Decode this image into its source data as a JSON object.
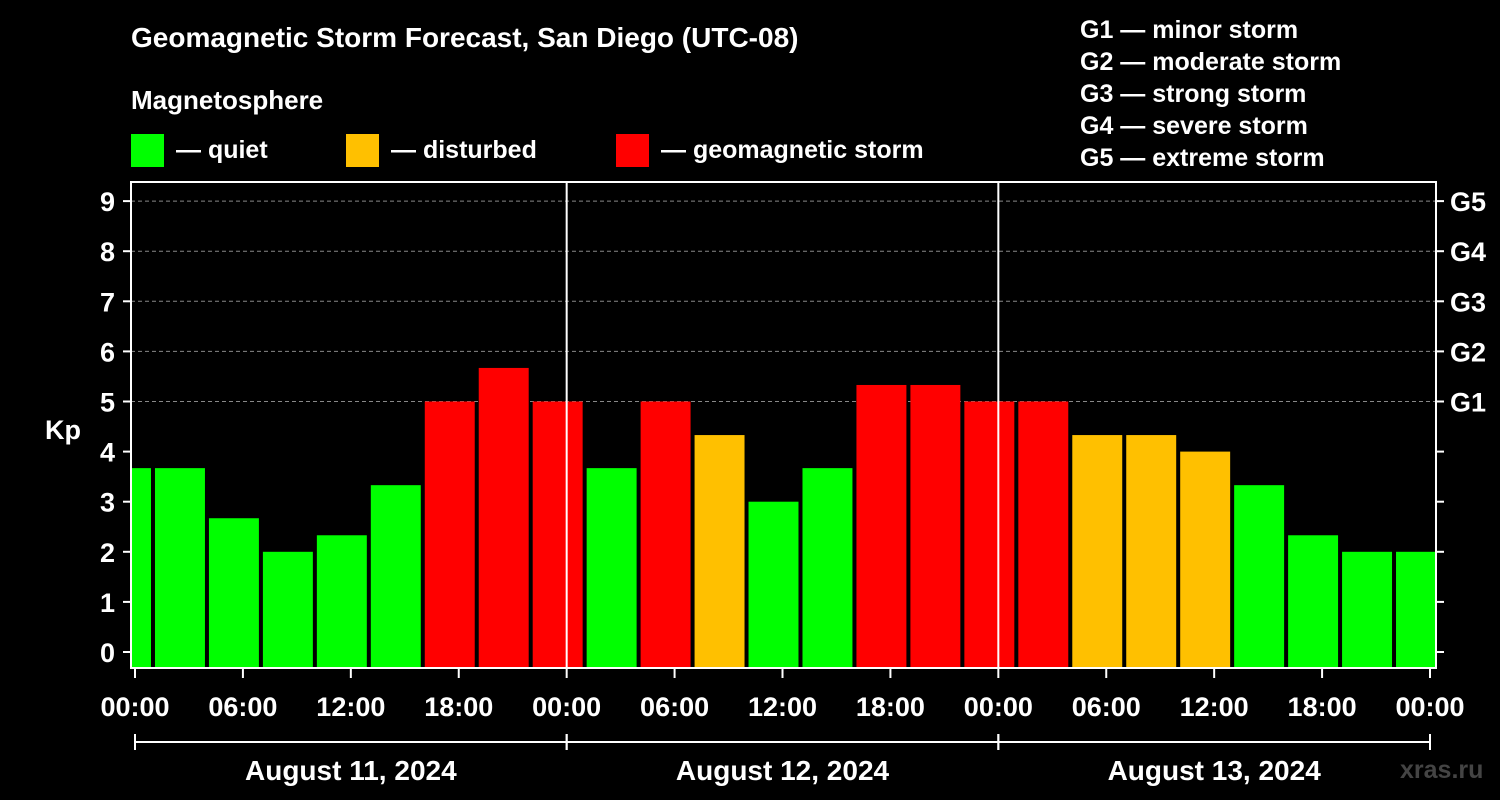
{
  "title": "Geomagnetic Storm Forecast, San Diego (UTC-08)",
  "legend": {
    "heading": "Magnetosphere",
    "items": [
      {
        "label": "— quiet",
        "color": "#00ff00"
      },
      {
        "label": "— disturbed",
        "color": "#ffc000"
      },
      {
        "label": "— geomagnetic storm",
        "color": "#ff0000"
      }
    ]
  },
  "g_scale": [
    "G1 — minor storm",
    "G2 — moderate storm",
    "G3 — strong storm",
    "G4 — severe storm",
    "G5 — extreme storm"
  ],
  "watermark": "xras.ru",
  "chart_data": {
    "type": "bar",
    "title": "Geomagnetic Storm Forecast, San Diego (UTC-08)",
    "ylabel": "Kp",
    "ylim": [
      0,
      9
    ],
    "yticks": [
      0,
      1,
      2,
      3,
      4,
      5,
      6,
      7,
      8,
      9
    ],
    "right_axis": [
      {
        "kp": 5,
        "label": "G1"
      },
      {
        "kp": 6,
        "label": "G2"
      },
      {
        "kp": 7,
        "label": "G3"
      },
      {
        "kp": 8,
        "label": "G4"
      },
      {
        "kp": 9,
        "label": "G5"
      }
    ],
    "x_range_hours": [
      0,
      72
    ],
    "x_ticks": [
      {
        "h": 0,
        "label": "00:00"
      },
      {
        "h": 6,
        "label": "06:00"
      },
      {
        "h": 12,
        "label": "12:00"
      },
      {
        "h": 18,
        "label": "18:00"
      },
      {
        "h": 24,
        "label": "00:00"
      },
      {
        "h": 30,
        "label": "06:00"
      },
      {
        "h": 36,
        "label": "12:00"
      },
      {
        "h": 42,
        "label": "18:00"
      },
      {
        "h": 48,
        "label": "00:00"
      },
      {
        "h": 54,
        "label": "06:00"
      },
      {
        "h": 60,
        "label": "12:00"
      },
      {
        "h": 66,
        "label": "18:00"
      },
      {
        "h": 72,
        "label": "00:00"
      }
    ],
    "days": [
      {
        "label": "August 11, 2024",
        "start": 0,
        "end": 24
      },
      {
        "label": "August 12, 2024",
        "start": 24,
        "end": 48
      },
      {
        "label": "August 13, 2024",
        "start": 48,
        "end": 72
      }
    ],
    "level_colors": {
      "quiet": "#00ff00",
      "disturbed": "#ffc000",
      "storm": "#ff0000"
    },
    "bars": [
      {
        "start": -2,
        "end": 1,
        "kp": 3.67,
        "level": "quiet"
      },
      {
        "start": 1,
        "end": 4,
        "kp": 3.67,
        "level": "quiet"
      },
      {
        "start": 4,
        "end": 7,
        "kp": 2.67,
        "level": "quiet"
      },
      {
        "start": 7,
        "end": 10,
        "kp": 2.0,
        "level": "quiet"
      },
      {
        "start": 10,
        "end": 13,
        "kp": 2.33,
        "level": "quiet"
      },
      {
        "start": 13,
        "end": 16,
        "kp": 3.33,
        "level": "quiet"
      },
      {
        "start": 16,
        "end": 19,
        "kp": 5.0,
        "level": "storm"
      },
      {
        "start": 19,
        "end": 22,
        "kp": 5.67,
        "level": "storm"
      },
      {
        "start": 22,
        "end": 25,
        "kp": 5.0,
        "level": "storm"
      },
      {
        "start": 25,
        "end": 28,
        "kp": 3.67,
        "level": "quiet"
      },
      {
        "start": 28,
        "end": 31,
        "kp": 5.0,
        "level": "storm"
      },
      {
        "start": 31,
        "end": 34,
        "kp": 4.33,
        "level": "disturbed"
      },
      {
        "start": 34,
        "end": 37,
        "kp": 3.0,
        "level": "quiet"
      },
      {
        "start": 37,
        "end": 40,
        "kp": 3.67,
        "level": "quiet"
      },
      {
        "start": 40,
        "end": 43,
        "kp": 5.33,
        "level": "storm"
      },
      {
        "start": 43,
        "end": 46,
        "kp": 5.33,
        "level": "storm"
      },
      {
        "start": 46,
        "end": 49,
        "kp": 5.0,
        "level": "storm"
      },
      {
        "start": 49,
        "end": 52,
        "kp": 5.0,
        "level": "storm"
      },
      {
        "start": 52,
        "end": 55,
        "kp": 4.33,
        "level": "disturbed"
      },
      {
        "start": 55,
        "end": 58,
        "kp": 4.33,
        "level": "disturbed"
      },
      {
        "start": 58,
        "end": 61,
        "kp": 4.0,
        "level": "disturbed"
      },
      {
        "start": 61,
        "end": 64,
        "kp": 3.33,
        "level": "quiet"
      },
      {
        "start": 64,
        "end": 67,
        "kp": 2.33,
        "level": "quiet"
      },
      {
        "start": 67,
        "end": 70,
        "kp": 2.0,
        "level": "quiet"
      },
      {
        "start": 70,
        "end": 73,
        "kp": 2.0,
        "level": "quiet"
      }
    ]
  }
}
